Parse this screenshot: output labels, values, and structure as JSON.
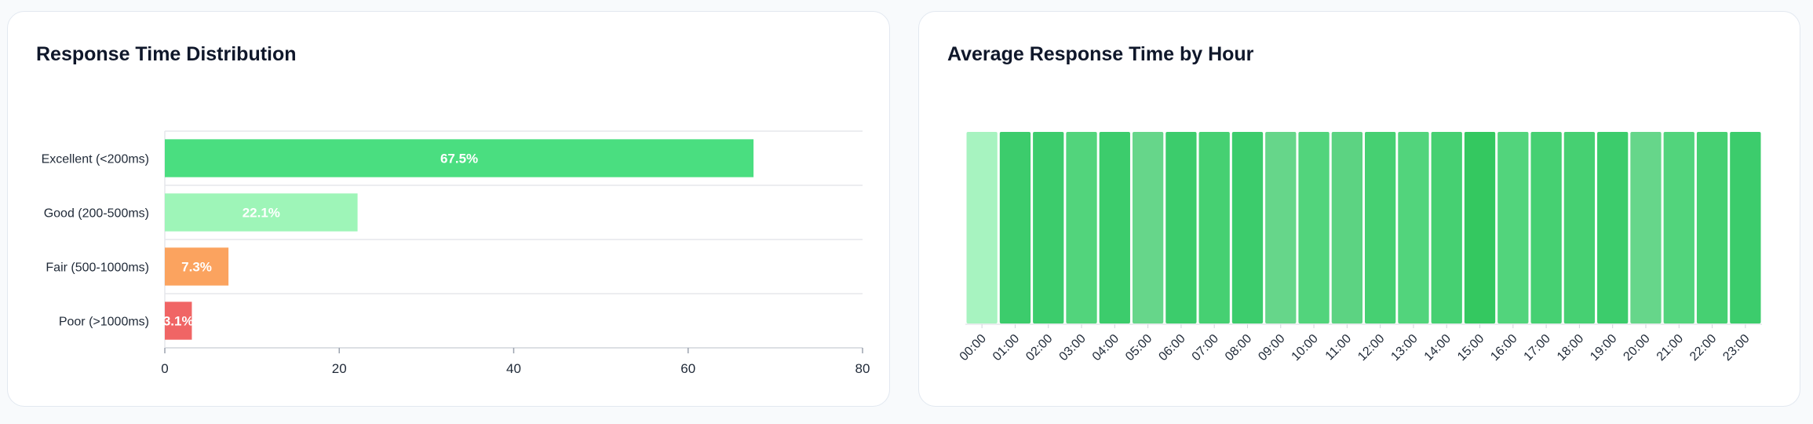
{
  "charts": [
    {
      "title": "Response Time Distribution"
    },
    {
      "title": "Average Response Time by Hour"
    }
  ],
  "chart_data": [
    {
      "type": "bar",
      "orientation": "horizontal",
      "title": "Response Time Distribution",
      "categories": [
        "Excellent (<200ms)",
        "Good (200-500ms)",
        "Fair (500-1000ms)",
        "Poor (>1000ms)"
      ],
      "values": [
        67.5,
        22.1,
        7.3,
        3.1
      ],
      "value_labels": [
        "67.5%",
        "22.1%",
        "7.3%",
        "3.1%"
      ],
      "colors": [
        "#4ade80",
        "#9ef5b8",
        "#fba35f",
        "#f06565"
      ],
      "xlim": [
        0,
        80
      ],
      "xticks": [
        0,
        20,
        40,
        60,
        80
      ],
      "grid": "horizontal category separators"
    },
    {
      "type": "heatmap",
      "title": "Average Response Time by Hour",
      "categories": [
        "00:00",
        "01:00",
        "02:00",
        "03:00",
        "04:00",
        "05:00",
        "06:00",
        "07:00",
        "08:00",
        "09:00",
        "10:00",
        "11:00",
        "12:00",
        "13:00",
        "14:00",
        "15:00",
        "16:00",
        "17:00",
        "18:00",
        "19:00",
        "20:00",
        "21:00",
        "22:00",
        "23:00"
      ],
      "colors": [
        "#a7f3c0",
        "#3ccc6c",
        "#3ccc6c",
        "#52d47c",
        "#3ccc6c",
        "#66d68a",
        "#3ccc6c",
        "#46d072",
        "#3ccc6c",
        "#66d68a",
        "#52d47c",
        "#5cd382",
        "#46d072",
        "#52d47c",
        "#46d072",
        "#34c860",
        "#52d47c",
        "#46d072",
        "#46d072",
        "#3ccc6c",
        "#66d68a",
        "#52d47c",
        "#46d072",
        "#3ccc6c"
      ]
    }
  ]
}
